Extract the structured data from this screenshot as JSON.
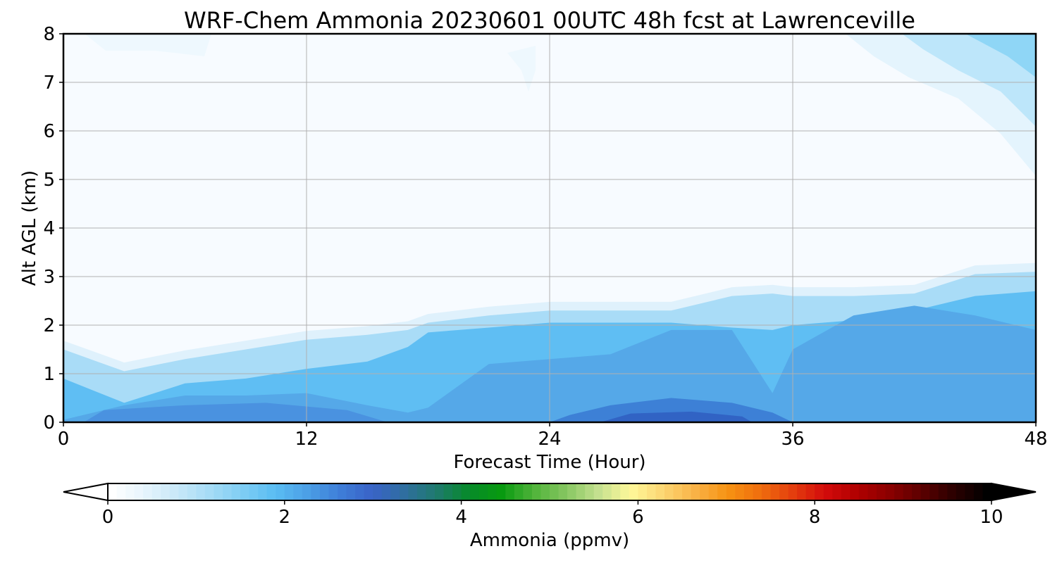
{
  "chart_data": {
    "type": "heatmap",
    "title": "WRF-Chem Ammonia  20230601 00UTC 48h fcst at Lawrenceville",
    "xlabel": "Forecast Time (Hour)",
    "ylabel": "Alt AGL (km)",
    "xlim": [
      0,
      48
    ],
    "ylim": [
      0,
      8
    ],
    "xticks": [
      0,
      12,
      24,
      36,
      48
    ],
    "xtick_labels": [
      "0",
      "12",
      "24",
      "36",
      "48"
    ],
    "yticks": [
      0,
      1,
      2,
      3,
      4,
      5,
      6,
      7,
      8
    ],
    "ytick_labels": [
      "0",
      "1",
      "2",
      "3",
      "4",
      "5",
      "6",
      "7",
      "8"
    ],
    "grid": true,
    "colorbar": {
      "label": "Ammonia  (ppmv)",
      "range": [
        0,
        10
      ],
      "ticks": [
        0,
        2,
        4,
        6,
        8,
        10
      ],
      "tick_labels": [
        "0",
        "2",
        "4",
        "6",
        "8",
        "10"
      ],
      "extend": "both",
      "colors": [
        "#ffffff",
        "#e6f4fc",
        "#c8e8f8",
        "#a6dcf6",
        "#7fcdf4",
        "#5bbef3",
        "#4ca0e6",
        "#3e7fd8",
        "#3a63c8",
        "#2f6ea0",
        "#1f7a6e",
        "#078a2a",
        "#089a10",
        "#4fb33a",
        "#86c660",
        "#c4e08f",
        "#fff89a",
        "#fcd672",
        "#f9b246",
        "#f79212",
        "#ef6e0e",
        "#e43e0e",
        "#d30b0b",
        "#b00000",
        "#8a0000",
        "#5a0000",
        "#2a0000",
        "#000000"
      ],
      "under_color": "#ffffff",
      "over_color": "#000000"
    },
    "series": [
      {
        "x": [
          0,
          3,
          6,
          9,
          12,
          15,
          17,
          18,
          21,
          24,
          27,
          30,
          33,
          35,
          36,
          39,
          42,
          45,
          48
        ],
        "top_km": [
          1.5,
          1.05,
          1.3,
          1.5,
          1.7,
          1.8,
          1.9,
          2.05,
          2.2,
          2.3,
          2.3,
          2.3,
          2.6,
          2.65,
          2.6,
          2.6,
          2.65,
          3.05,
          3.1
        ],
        "mid_km": [
          0.9,
          0.4,
          0.8,
          0.9,
          1.1,
          1.25,
          1.55,
          1.85,
          1.95,
          2.05,
          2.05,
          2.05,
          1.95,
          1.9,
          2.0,
          2.1,
          2.3,
          2.6,
          2.7
        ],
        "dark_top_km": [
          0.05,
          0.35,
          0.55,
          0.55,
          0.6,
          0.35,
          0.2,
          0.3,
          1.2,
          1.3,
          1.4,
          1.9,
          1.9,
          0.6,
          1.5,
          2.2,
          2.4,
          2.2,
          1.9
        ]
      }
    ],
    "annotations": {
      "upper_right_plume": "enhanced values above 3 km after hour 40"
    }
  }
}
